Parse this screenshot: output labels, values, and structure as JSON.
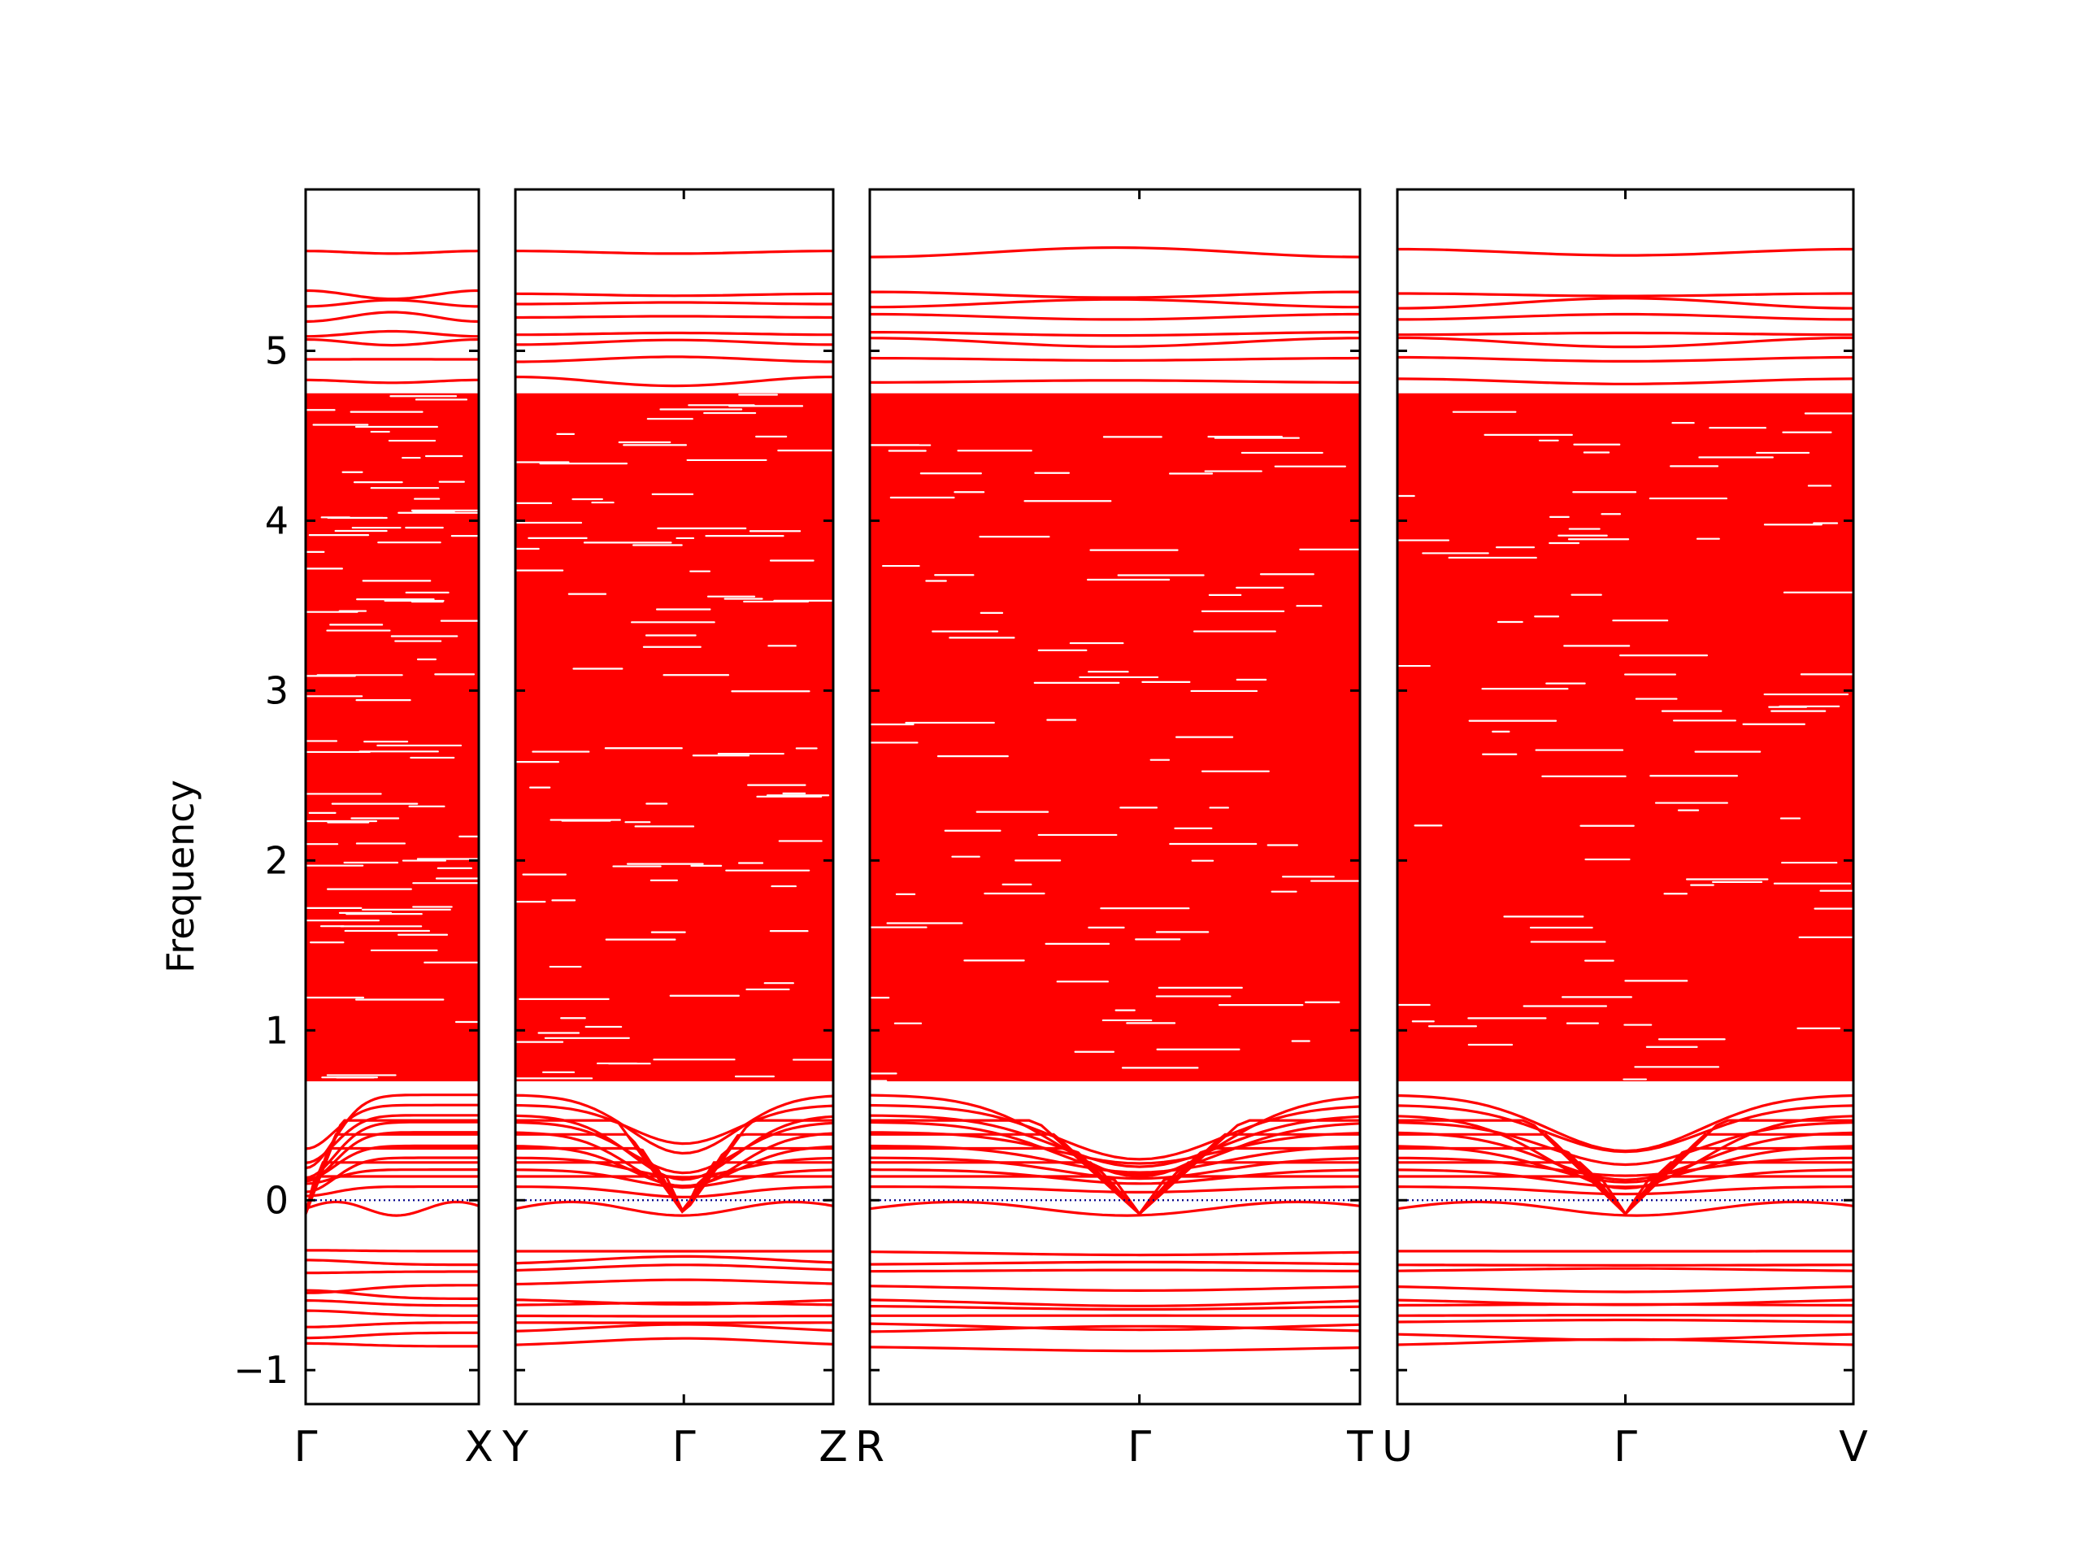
{
  "chart_data": {
    "type": "line",
    "title": "",
    "ylabel": "Frequency",
    "xlabel": "",
    "ylim": [
      -1.2,
      5.95
    ],
    "yticks": [
      -1,
      0,
      1,
      2,
      3,
      4,
      5
    ],
    "ytick_labels": [
      "−1",
      "0",
      "1",
      "2",
      "3",
      "4",
      "5"
    ],
    "grid": false,
    "legend": "none",
    "line_color": "#ff0000",
    "zero_line_color": "#00008b",
    "zero_line_style": "dotted",
    "panels": [
      {
        "labels": [
          "Γ",
          "X"
        ],
        "label_pos": [
          0,
          1
        ],
        "length": 1.0
      },
      {
        "labels": [
          "Y",
          "Γ",
          "Z"
        ],
        "label_pos": [
          0,
          0.53,
          1
        ],
        "length": 1.85
      },
      {
        "labels": [
          "R",
          "Γ",
          "T"
        ],
        "label_pos": [
          0,
          0.55,
          1
        ],
        "length": 2.85
      },
      {
        "labels": [
          "U",
          "Γ",
          "V"
        ],
        "label_pos": [
          0,
          0.5,
          1
        ],
        "length": 2.65
      }
    ],
    "high_bands": [
      5.58,
      5.33,
      5.28,
      5.2,
      5.1,
      5.05,
      4.95,
      4.82
    ],
    "dense_region": [
      0.7,
      4.75
    ],
    "negative_bands": [
      -0.3,
      -0.38,
      -0.42,
      -0.5,
      -0.58,
      -0.62,
      -0.68,
      -0.72,
      -0.78,
      -0.86
    ],
    "low_positive_bands": [
      0.08,
      0.18,
      0.25,
      0.32,
      0.4,
      0.46,
      0.5,
      0.56,
      0.62
    ]
  }
}
